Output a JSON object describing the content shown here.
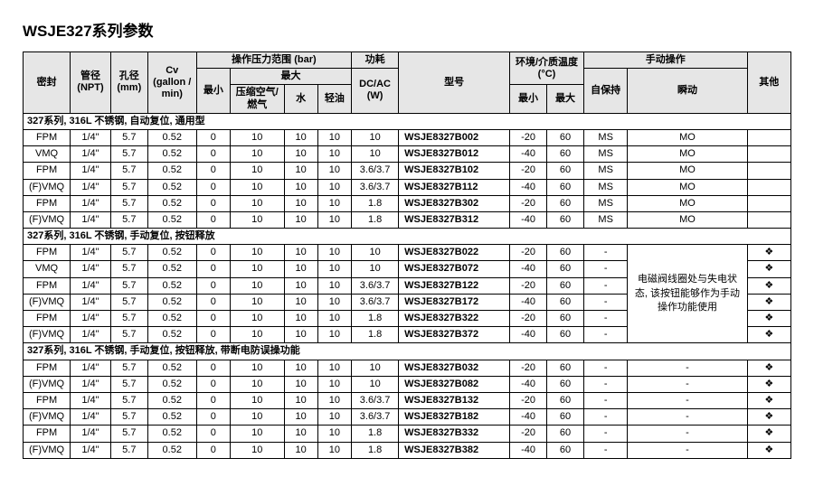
{
  "title": "WSJE327系列参数",
  "headers": {
    "seal": "密封",
    "npt": "管径\n(NPT)",
    "bore": "孔径\n(mm)",
    "cv": "Cv\n(gallon /\nmin)",
    "pressure_group": "操作压力范围 (bar)",
    "min": "最小",
    "max": "最大",
    "air_gas": "压缩空气/\n燃气",
    "water": "水",
    "light_oil": "轻油",
    "power_group": "功耗",
    "power_sub": "DC/AC\n(W)",
    "model": "型号",
    "temp_group": "环境/介质温度\n(°C)",
    "temp_min": "最小",
    "temp_max": "最大",
    "manual_group": "手动操作",
    "self_hold": "自保持",
    "impulse": "瞬动",
    "other": "其他"
  },
  "sections": [
    {
      "label": "327系列, 316L 不锈钢, 自动复位, 通用型",
      "rows": [
        {
          "seal": "FPM",
          "npt": "1/4\"",
          "bore": "5.7",
          "cv": "0.52",
          "pmin": "0",
          "air": "10",
          "water": "10",
          "oil": "10",
          "pwr": "10",
          "model": "WSJE8327B002",
          "tmin": "-20",
          "tmax": "60",
          "hold": "MS",
          "imp": "MO",
          "other": ""
        },
        {
          "seal": "VMQ",
          "npt": "1/4\"",
          "bore": "5.7",
          "cv": "0.52",
          "pmin": "0",
          "air": "10",
          "water": "10",
          "oil": "10",
          "pwr": "10",
          "model": "WSJE8327B012",
          "tmin": "-40",
          "tmax": "60",
          "hold": "MS",
          "imp": "MO",
          "other": ""
        },
        {
          "seal": "FPM",
          "npt": "1/4\"",
          "bore": "5.7",
          "cv": "0.52",
          "pmin": "0",
          "air": "10",
          "water": "10",
          "oil": "10",
          "pwr": "3.6/3.7",
          "model": "WSJE8327B102",
          "tmin": "-20",
          "tmax": "60",
          "hold": "MS",
          "imp": "MO",
          "other": ""
        },
        {
          "seal": "(F)VMQ",
          "npt": "1/4\"",
          "bore": "5.7",
          "cv": "0.52",
          "pmin": "0",
          "air": "10",
          "water": "10",
          "oil": "10",
          "pwr": "3.6/3.7",
          "model": "WSJE8327B112",
          "tmin": "-40",
          "tmax": "60",
          "hold": "MS",
          "imp": "MO",
          "other": ""
        },
        {
          "seal": "FPM",
          "npt": "1/4\"",
          "bore": "5.7",
          "cv": "0.52",
          "pmin": "0",
          "air": "10",
          "water": "10",
          "oil": "10",
          "pwr": "1.8",
          "model": "WSJE8327B302",
          "tmin": "-20",
          "tmax": "60",
          "hold": "MS",
          "imp": "MO",
          "other": ""
        },
        {
          "seal": "(F)VMQ",
          "npt": "1/4\"",
          "bore": "5.7",
          "cv": "0.52",
          "pmin": "0",
          "air": "10",
          "water": "10",
          "oil": "10",
          "pwr": "1.8",
          "model": "WSJE8327B312",
          "tmin": "-40",
          "tmax": "60",
          "hold": "MS",
          "imp": "MO",
          "other": ""
        }
      ]
    },
    {
      "label": "327系列, 316L 不锈钢, 手动复位, 按钮释放",
      "note": "电磁阀线圈处与失电状态, 该按钮能够作为手动操作功能使用",
      "rows": [
        {
          "seal": "FPM",
          "npt": "1/4\"",
          "bore": "5.7",
          "cv": "0.52",
          "pmin": "0",
          "air": "10",
          "water": "10",
          "oil": "10",
          "pwr": "10",
          "model": "WSJE8327B022",
          "tmin": "-20",
          "tmax": "60",
          "hold": "-",
          "other": "❖"
        },
        {
          "seal": "VMQ",
          "npt": "1/4\"",
          "bore": "5.7",
          "cv": "0.52",
          "pmin": "0",
          "air": "10",
          "water": "10",
          "oil": "10",
          "pwr": "10",
          "model": "WSJE8327B072",
          "tmin": "-40",
          "tmax": "60",
          "hold": "-",
          "other": "❖"
        },
        {
          "seal": "FPM",
          "npt": "1/4\"",
          "bore": "5.7",
          "cv": "0.52",
          "pmin": "0",
          "air": "10",
          "water": "10",
          "oil": "10",
          "pwr": "3.6/3.7",
          "model": "WSJE8327B122",
          "tmin": "-20",
          "tmax": "60",
          "hold": "-",
          "other": "❖"
        },
        {
          "seal": "(F)VMQ",
          "npt": "1/4\"",
          "bore": "5.7",
          "cv": "0.52",
          "pmin": "0",
          "air": "10",
          "water": "10",
          "oil": "10",
          "pwr": "3.6/3.7",
          "model": "WSJE8327B172",
          "tmin": "-40",
          "tmax": "60",
          "hold": "-",
          "other": "❖"
        },
        {
          "seal": "FPM",
          "npt": "1/4\"",
          "bore": "5.7",
          "cv": "0.52",
          "pmin": "0",
          "air": "10",
          "water": "10",
          "oil": "10",
          "pwr": "1.8",
          "model": "WSJE8327B322",
          "tmin": "-20",
          "tmax": "60",
          "hold": "-",
          "other": "❖"
        },
        {
          "seal": "(F)VMQ",
          "npt": "1/4\"",
          "bore": "5.7",
          "cv": "0.52",
          "pmin": "0",
          "air": "10",
          "water": "10",
          "oil": "10",
          "pwr": "1.8",
          "model": "WSJE8327B372",
          "tmin": "-40",
          "tmax": "60",
          "hold": "-",
          "other": "❖"
        }
      ]
    },
    {
      "label": "327系列, 316L 不锈钢, 手动复位, 按钮释放, 带断电防误操功能",
      "rows": [
        {
          "seal": "FPM",
          "npt": "1/4\"",
          "bore": "5.7",
          "cv": "0.52",
          "pmin": "0",
          "air": "10",
          "water": "10",
          "oil": "10",
          "pwr": "10",
          "model": "WSJE8327B032",
          "tmin": "-20",
          "tmax": "60",
          "hold": "-",
          "imp": "-",
          "other": "❖"
        },
        {
          "seal": "(F)VMQ",
          "npt": "1/4\"",
          "bore": "5.7",
          "cv": "0.52",
          "pmin": "0",
          "air": "10",
          "water": "10",
          "oil": "10",
          "pwr": "10",
          "model": "WSJE8327B082",
          "tmin": "-40",
          "tmax": "60",
          "hold": "-",
          "imp": "-",
          "other": "❖"
        },
        {
          "seal": "FPM",
          "npt": "1/4\"",
          "bore": "5.7",
          "cv": "0.52",
          "pmin": "0",
          "air": "10",
          "water": "10",
          "oil": "10",
          "pwr": "3.6/3.7",
          "model": "WSJE8327B132",
          "tmin": "-20",
          "tmax": "60",
          "hold": "-",
          "imp": "-",
          "other": "❖"
        },
        {
          "seal": "(F)VMQ",
          "npt": "1/4\"",
          "bore": "5.7",
          "cv": "0.52",
          "pmin": "0",
          "air": "10",
          "water": "10",
          "oil": "10",
          "pwr": "3.6/3.7",
          "model": "WSJE8327B182",
          "tmin": "-40",
          "tmax": "60",
          "hold": "-",
          "imp": "-",
          "other": "❖"
        },
        {
          "seal": "FPM",
          "npt": "1/4\"",
          "bore": "5.7",
          "cv": "0.52",
          "pmin": "0",
          "air": "10",
          "water": "10",
          "oil": "10",
          "pwr": "1.8",
          "model": "WSJE8327B332",
          "tmin": "-20",
          "tmax": "60",
          "hold": "-",
          "imp": "-",
          "other": "❖"
        },
        {
          "seal": "(F)VMQ",
          "npt": "1/4\"",
          "bore": "5.7",
          "cv": "0.52",
          "pmin": "0",
          "air": "10",
          "water": "10",
          "oil": "10",
          "pwr": "1.8",
          "model": "WSJE8327B382",
          "tmin": "-40",
          "tmax": "60",
          "hold": "-",
          "imp": "-",
          "other": "❖"
        }
      ]
    }
  ],
  "col_widths_pct": [
    5.6,
    4.8,
    4.4,
    5.8,
    4,
    6.4,
    4,
    4,
    5.6,
    13.2,
    4.4,
    4.4,
    5.2,
    14.2,
    5.2
  ]
}
